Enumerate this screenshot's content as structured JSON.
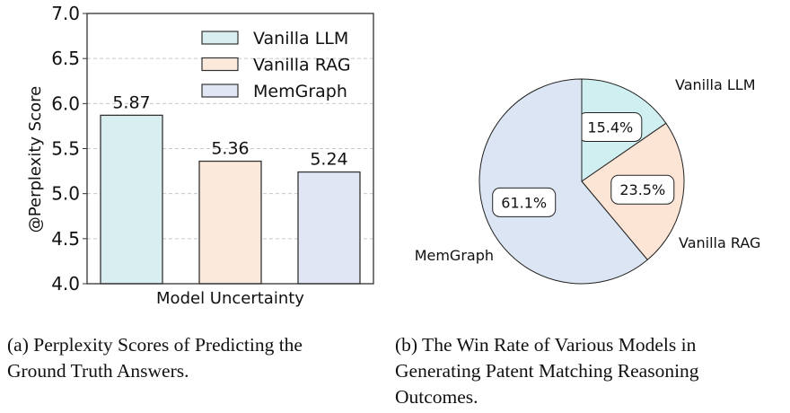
{
  "chart_data": [
    {
      "type": "bar",
      "categories": [
        "Vanilla LLM",
        "Vanilla RAG",
        "MemGraph"
      ],
      "values": [
        5.87,
        5.36,
        5.24
      ],
      "data_labels": [
        "5.87",
        "5.36",
        "5.24"
      ],
      "xlabel": "Model Uncertainty",
      "ylabel": "@Perplexity Score",
      "ylim": [
        4.0,
        7.0
      ],
      "yticks": [
        "4.0",
        "4.5",
        "5.0",
        "5.5",
        "6.0",
        "6.5",
        "7.0"
      ],
      "grid": "horizontal dashed",
      "legend": "top-right",
      "colors": [
        "#d9eef0",
        "#fbe9dc",
        "#e0e6f3"
      ],
      "caption": "(a) Perplexity Scores of Predicting the Ground Truth Answers.",
      "caption_lines": [
        "(a)  Perplexity Scores of Predicting the",
        "Ground Truth Answers."
      ]
    },
    {
      "type": "pie",
      "labels": [
        "Vanilla LLM",
        "Vanilla RAG",
        "MemGraph"
      ],
      "values": [
        15.4,
        23.5,
        61.1
      ],
      "data_labels": [
        "15.4%",
        "23.5%",
        "61.1%"
      ],
      "start": "top, clockwise",
      "colors": [
        "#d0eff0",
        "#fde5d6",
        "#dce5f3"
      ],
      "caption": "(b) The Win Rate of Various Models in Generating Patent Matching Reasoning Outcomes.",
      "caption_lines": [
        "(b)  The Win Rate of Various Models in",
        "Generating Patent Matching Reasoning",
        "Outcomes."
      ]
    }
  ]
}
